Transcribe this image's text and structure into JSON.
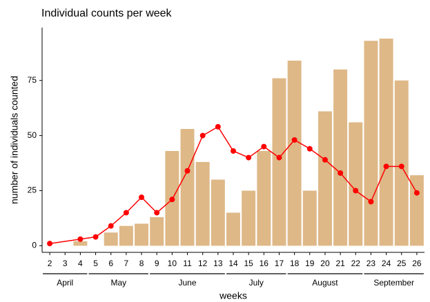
{
  "chart_data": {
    "type": "bar",
    "title": "Individual counts per week",
    "xlabel": "weeks",
    "ylabel": "number of individuals counted",
    "categories": [
      "2",
      "3",
      "4",
      "5",
      "6",
      "7",
      "8",
      "9",
      "10",
      "11",
      "12",
      "13",
      "14",
      "15",
      "16",
      "17",
      "18",
      "19",
      "20",
      "21",
      "22",
      "23",
      "24",
      "25",
      "26"
    ],
    "values": [
      0,
      0,
      2,
      0,
      6,
      9,
      10,
      13,
      43,
      53,
      38,
      30,
      15,
      25,
      43,
      76,
      84,
      25,
      61,
      80,
      56,
      93,
      94,
      75,
      32
    ],
    "color": "#deb887",
    "line": {
      "color": "#ff0000",
      "x": [
        "2",
        "4",
        "5",
        "6",
        "7",
        "8",
        "9",
        "10",
        "11",
        "12",
        "13",
        "14",
        "15",
        "16",
        "17",
        "18",
        "19",
        "20",
        "21",
        "22",
        "23",
        "24",
        "25",
        "26"
      ],
      "values": [
        1,
        3,
        4,
        9,
        15,
        22,
        15,
        21,
        34,
        50,
        54,
        43,
        40,
        45,
        40,
        48,
        44,
        39,
        33,
        25,
        20,
        36,
        36,
        24
      ]
    },
    "groups": [
      {
        "label": "April",
        "from": "2",
        "to": "4"
      },
      {
        "label": "May",
        "from": "5",
        "to": "8"
      },
      {
        "label": "June",
        "from": "9",
        "to": "13"
      },
      {
        "label": "July",
        "from": "14",
        "to": "17"
      },
      {
        "label": "August",
        "from": "18",
        "to": "22"
      },
      {
        "label": "September",
        "from": "23",
        "to": "26"
      }
    ],
    "ylim": [
      -3,
      99
    ],
    "yticks": [
      0,
      25,
      50,
      75
    ],
    "grid": false
  }
}
